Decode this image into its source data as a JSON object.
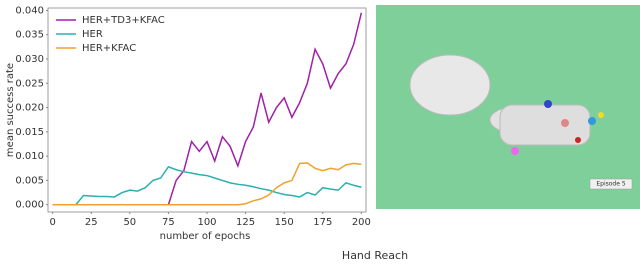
{
  "chart_data": {
    "type": "line",
    "x": [
      0,
      5,
      10,
      15,
      20,
      25,
      30,
      35,
      40,
      45,
      50,
      55,
      60,
      65,
      70,
      75,
      80,
      85,
      90,
      95,
      100,
      105,
      110,
      115,
      120,
      125,
      130,
      135,
      140,
      145,
      150,
      155,
      160,
      165,
      170,
      175,
      180,
      185,
      190,
      195,
      200
    ],
    "series": [
      {
        "name": "HER+TD3+KFAC",
        "color": "#a020a8",
        "values": [
          null,
          null,
          null,
          null,
          null,
          null,
          null,
          null,
          null,
          null,
          null,
          null,
          null,
          null,
          null,
          0.0,
          0.005,
          0.007,
          0.013,
          0.011,
          0.013,
          0.009,
          0.014,
          0.012,
          0.008,
          0.013,
          0.016,
          0.023,
          0.017,
          0.02,
          0.022,
          0.018,
          0.021,
          0.025,
          0.032,
          0.029,
          0.024,
          0.027,
          0.029,
          0.033,
          0.0395
        ]
      },
      {
        "name": "HER",
        "color": "#2ab0b0",
        "values": [
          0,
          0,
          0,
          0,
          0.0019,
          0.0018,
          0.0017,
          0.0017,
          0.0016,
          0.0025,
          0.003,
          0.0028,
          0.0035,
          0.005,
          0.0055,
          0.0078,
          0.0072,
          0.0068,
          0.0065,
          0.0062,
          0.006,
          0.0055,
          0.005,
          0.0045,
          0.0042,
          0.004,
          0.0037,
          0.0033,
          0.003,
          0.0025,
          0.0021,
          0.0019,
          0.0016,
          0.0025,
          0.002,
          0.0035,
          0.0032,
          0.003,
          0.0045,
          0.004,
          0.0036
        ]
      },
      {
        "name": "HER+KFAC",
        "color": "#f0a030",
        "values": [
          0,
          0,
          0,
          0,
          0,
          0,
          0,
          0,
          0,
          0,
          0,
          0,
          0,
          0,
          0,
          0,
          0,
          0,
          0,
          0,
          0,
          0,
          0,
          0,
          0,
          0.0002,
          0.0008,
          0.0012,
          0.002,
          0.0035,
          0.0045,
          0.005,
          0.0085,
          0.0086,
          0.0075,
          0.007,
          0.0075,
          0.0072,
          0.0082,
          0.0085,
          0.0083
        ]
      }
    ],
    "xlabel": "number of epochs",
    "ylabel": "mean success rate",
    "xlim": [
      -3,
      203
    ],
    "ylim": [
      -0.0015,
      0.0405
    ],
    "xticks": [
      0,
      25,
      50,
      75,
      100,
      125,
      150,
      175,
      200
    ],
    "yticks": [
      {
        "value": 0,
        "label": "0.000"
      },
      {
        "value": 0.005,
        "label": "0.005"
      },
      {
        "value": 0.01,
        "label": "0.010"
      },
      {
        "value": 0.015,
        "label": "0.015"
      },
      {
        "value": 0.02,
        "label": "0.020"
      },
      {
        "value": 0.025,
        "label": "0.025"
      },
      {
        "value": 0.03,
        "label": "0.030"
      },
      {
        "value": 0.035,
        "label": "0.035"
      },
      {
        "value": 0.04,
        "label": "0.040"
      }
    ],
    "legend": "upper left"
  },
  "image_label": "Episode 5",
  "caption": "Hand Reach"
}
